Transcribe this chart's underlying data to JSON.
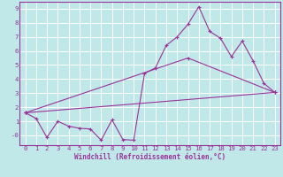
{
  "xlabel": "Windchill (Refroidissement éolien,°C)",
  "bg_color": "#c0e8e8",
  "line_color": "#993399",
  "grid_color": "#ffffff",
  "spine_color": "#993399",
  "xlim": [
    -0.5,
    23.5
  ],
  "ylim": [
    -0.7,
    9.5
  ],
  "xticks": [
    0,
    1,
    2,
    3,
    4,
    5,
    6,
    7,
    8,
    9,
    10,
    11,
    12,
    13,
    14,
    15,
    16,
    17,
    18,
    19,
    20,
    21,
    22,
    23
  ],
  "yticks": [
    0,
    1,
    2,
    3,
    4,
    5,
    6,
    7,
    8,
    9
  ],
  "ytick_labels": [
    "-0",
    "1",
    "2",
    "3",
    "4",
    "5",
    "6",
    "7",
    "8",
    "9"
  ],
  "line1_x": [
    0,
    1,
    2,
    3,
    4,
    5,
    6,
    7,
    8,
    9,
    10,
    11,
    12,
    13,
    14,
    15,
    16,
    17,
    18,
    19,
    20,
    21,
    22,
    23
  ],
  "line1_y": [
    1.6,
    1.2,
    -0.15,
    1.0,
    0.65,
    0.5,
    0.45,
    -0.35,
    1.1,
    -0.3,
    -0.35,
    4.4,
    4.8,
    6.4,
    7.0,
    7.9,
    9.15,
    7.4,
    6.9,
    5.6,
    6.7,
    5.3,
    3.7,
    3.05
  ],
  "line2_x": [
    0,
    23
  ],
  "line2_y": [
    1.6,
    3.05
  ],
  "line3_x": [
    0,
    15,
    23
  ],
  "line3_y": [
    1.6,
    5.5,
    3.05
  ],
  "tick_fontsize": 5.2,
  "xlabel_fontsize": 5.5
}
